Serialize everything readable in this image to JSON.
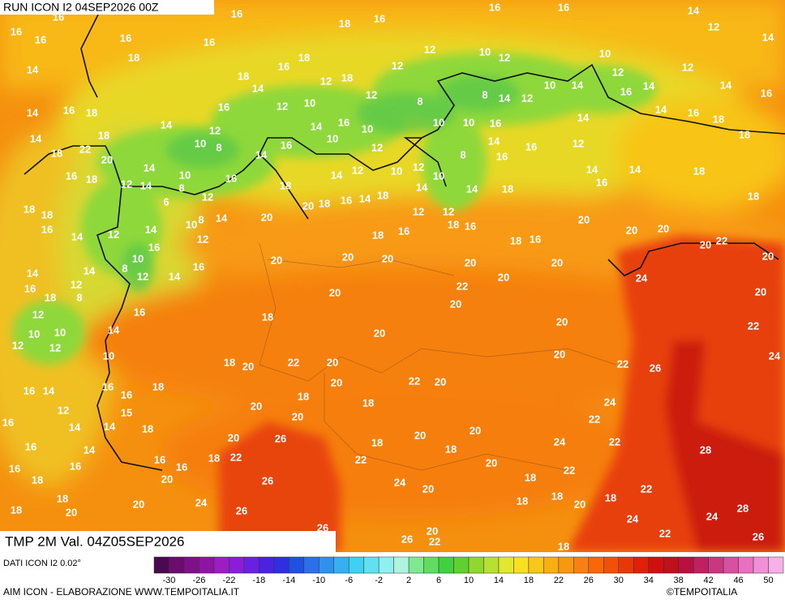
{
  "header": {
    "run": "RUN ICON I2 04SEP2026 00Z"
  },
  "footer": {
    "variable": "TMP 2M Val. 04Z05SEP2026",
    "source": "DATI ICON I2 0.02°",
    "credits": "AIM ICON - ELABORAZIONE WWW.TEMPOITALIA.IT",
    "copyright": "©TEMPOITALIA"
  },
  "scale": {
    "ticks": [
      -30,
      -26,
      -22,
      -18,
      -14,
      -10,
      -6,
      -2,
      2,
      6,
      10,
      14,
      18,
      22,
      26,
      30,
      34,
      38,
      42,
      46,
      50
    ],
    "colors": [
      "#4b0a4f",
      "#6a0d6f",
      "#7e108a",
      "#9014a4",
      "#9a1ec0",
      "#8a1ed8",
      "#6a20e0",
      "#4a22e0",
      "#2e30e0",
      "#2050e0",
      "#2a70e8",
      "#3090ec",
      "#38b0f0",
      "#40d0f4",
      "#60e0f0",
      "#90f0f0",
      "#b0f4e0",
      "#80e890",
      "#60dc60",
      "#40d040",
      "#60d030",
      "#90d830",
      "#b8e030",
      "#e0e830",
      "#f8e020",
      "#f8c818",
      "#f8b010",
      "#f89810",
      "#f88010",
      "#f86808",
      "#f05008",
      "#e83808",
      "#e02008",
      "#d01010",
      "#c0101c",
      "#b81040",
      "#c02060",
      "#c83880",
      "#d850a0",
      "#e870c0",
      "#f090d8",
      "#f8b0e8"
    ]
  },
  "map_labels": [
    16,
    16,
    16,
    18,
    16,
    16,
    16,
    14,
    12,
    14,
    16,
    16,
    16,
    14,
    18,
    16,
    18,
    12,
    18,
    12,
    12,
    10,
    12,
    10,
    12,
    14,
    12,
    14,
    16,
    18,
    14,
    16,
    18,
    14,
    14,
    16,
    12,
    10,
    12,
    8,
    8,
    10,
    14,
    12,
    14,
    16,
    14,
    16,
    18,
    14,
    18,
    12,
    10,
    8,
    14,
    16,
    10,
    10,
    10,
    16,
    14,
    18,
    18,
    22,
    20,
    16,
    18,
    14,
    12,
    14,
    10,
    8,
    12,
    6,
    16,
    10,
    16,
    14,
    12,
    12,
    14,
    10,
    12,
    10,
    8,
    14,
    16,
    16,
    12,
    14,
    14,
    16,
    18,
    18,
    18,
    18,
    16,
    14,
    12,
    14,
    10,
    8,
    12,
    14,
    20,
    18,
    20,
    18,
    16,
    14,
    18,
    14,
    14,
    12,
    12,
    18,
    16,
    18,
    20,
    20,
    20,
    20,
    22,
    18,
    16,
    18,
    16,
    14,
    10,
    16,
    8,
    12,
    14,
    16,
    20,
    20,
    20,
    20,
    20,
    20,
    20,
    16,
    12,
    8,
    18,
    14,
    24,
    20,
    22,
    20,
    20,
    12,
    14,
    16,
    18,
    20,
    20,
    22,
    12,
    10,
    12,
    10,
    10,
    20,
    18,
    20,
    22,
    20,
    22,
    26,
    24,
    16,
    14,
    16,
    18,
    16,
    20,
    22,
    20,
    12,
    14,
    14,
    15,
    18,
    20,
    18,
    18,
    20,
    24,
    22,
    16,
    16,
    14,
    20,
    26,
    20,
    20,
    24,
    22,
    16,
    16,
    16,
    16,
    18,
    22,
    22,
    18,
    18,
    20,
    28,
    18,
    20,
    26,
    24,
    20,
    22,
    18,
    22,
    18,
    18,
    20,
    24,
    26,
    18,
    18,
    20,
    18,
    24,
    24,
    28,
    20,
    22,
    26,
    26,
    26,
    20,
    22,
    18
  ]
}
